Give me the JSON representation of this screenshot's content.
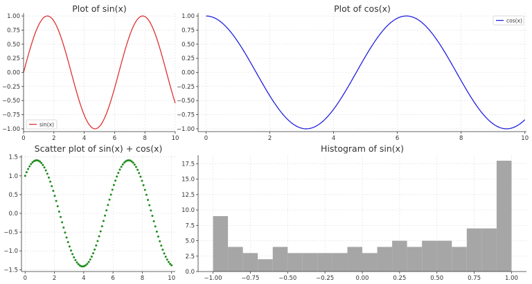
{
  "chart_data": [
    {
      "id": "sin",
      "type": "line",
      "title": "Plot of sin(x)",
      "function": "sin",
      "x_domain": [
        0,
        10
      ],
      "xlim": [
        0,
        10
      ],
      "ylim": [
        -1.05,
        1.05
      ],
      "xticks": [
        0,
        2,
        4,
        6,
        8,
        10
      ],
      "xtick_labels": [
        "0",
        "2",
        "4",
        "6",
        "8",
        "10"
      ],
      "yticks": [
        -1.0,
        -0.75,
        -0.5,
        -0.25,
        0.0,
        0.25,
        0.5,
        0.75,
        1.0
      ],
      "ytick_labels": [
        "−1.00",
        "−0.75",
        "−0.50",
        "−0.25",
        "0.00",
        "0.25",
        "0.50",
        "0.75",
        "1.00"
      ],
      "color": "#e03030",
      "grid": true,
      "legend": {
        "label": "sin(x)",
        "position": "lower-left"
      }
    },
    {
      "id": "cos",
      "type": "line",
      "title": "Plot of cos(x)",
      "function": "cos",
      "x_domain": [
        0,
        10
      ],
      "xlim": [
        -0.25,
        10.05
      ],
      "ylim": [
        -1.05,
        1.05
      ],
      "xticks": [
        0,
        2,
        4,
        6,
        8,
        10
      ],
      "xtick_labels": [
        "0",
        "2",
        "4",
        "6",
        "8",
        "10"
      ],
      "yticks": [
        -1.0,
        -0.75,
        -0.5,
        -0.25,
        0.0,
        0.25,
        0.5,
        0.75,
        1.0
      ],
      "ytick_labels": [
        "−1.00",
        "−0.75",
        "−0.50",
        "−0.25",
        "0.00",
        "0.25",
        "0.50",
        "0.75",
        "1.00"
      ],
      "color": "#2020e0",
      "grid": true,
      "legend": {
        "label": "cos(x)",
        "position": "upper-right"
      }
    },
    {
      "id": "scatter",
      "type": "scatter",
      "title": "Scatter plot of sin(x) + cos(x)",
      "function": "sin+cos",
      "x_domain": [
        0,
        10
      ],
      "point_count": 100,
      "xlim": [
        -0.25,
        10.25
      ],
      "ylim": [
        -1.55,
        1.55
      ],
      "xticks": [
        0,
        2,
        4,
        6,
        8,
        10
      ],
      "xtick_labels": [
        "0",
        "2",
        "4",
        "6",
        "8",
        "10"
      ],
      "yticks": [
        -1.5,
        -1.0,
        -0.5,
        0.0,
        0.5,
        1.0,
        1.5
      ],
      "ytick_labels": [
        "−1.5",
        "−1.0",
        "−0.5",
        "0.0",
        "0.5",
        "1.0",
        "1.5"
      ],
      "color": "#1e8c1e",
      "grid": true
    },
    {
      "id": "hist",
      "type": "bar",
      "title": "Histogram of sin(x)",
      "bin_edges": [
        -1.0,
        -0.9,
        -0.8,
        -0.7,
        -0.6,
        -0.5,
        -0.4,
        -0.3,
        -0.2,
        -0.1,
        0.0,
        0.1,
        0.2,
        0.3,
        0.4,
        0.5,
        0.6,
        0.7,
        0.8,
        0.9,
        1.0
      ],
      "values": [
        9,
        4,
        3,
        2,
        4,
        3,
        3,
        3,
        3,
        4,
        3,
        4,
        5,
        4,
        5,
        5,
        4,
        7,
        7,
        18
      ],
      "xlim": [
        -1.1,
        1.1
      ],
      "ylim": [
        0,
        18.9
      ],
      "xticks": [
        -1.0,
        -0.75,
        -0.5,
        -0.25,
        0.0,
        0.25,
        0.5,
        0.75,
        1.0
      ],
      "xtick_labels": [
        "−1.00",
        "−0.75",
        "−0.50",
        "−0.25",
        "0.00",
        "0.25",
        "0.50",
        "0.75",
        "1.00"
      ],
      "yticks": [
        0.0,
        2.5,
        5.0,
        7.5,
        10.0,
        12.5,
        15.0,
        17.5
      ],
      "ytick_labels": [
        "0.0",
        "2.5",
        "5.0",
        "7.5",
        "10.0",
        "12.5",
        "15.0",
        "17.5"
      ],
      "color": "#a6a6a6",
      "grid": true
    }
  ]
}
